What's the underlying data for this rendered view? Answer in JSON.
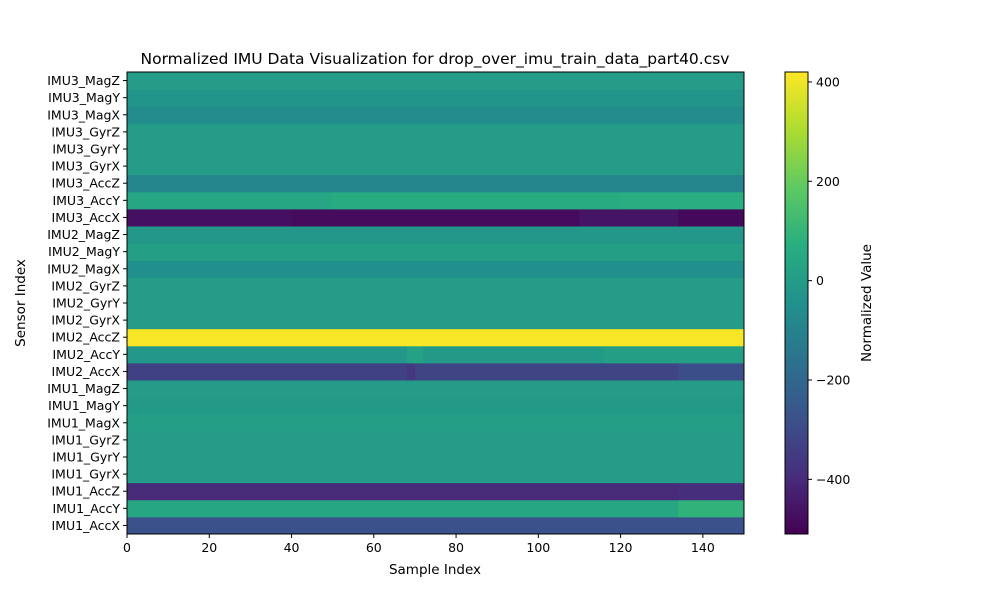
{
  "chart_data": {
    "type": "heatmap",
    "title": "Normalized IMU Data Visualization for drop_over_imu_train_data_part40.csv",
    "xlabel": "Sample Index",
    "ylabel": "Sensor Index",
    "colorbar_label": "Normalized Value",
    "colormap": "viridis",
    "xlim": [
      0,
      150
    ],
    "x_ticks": [
      0,
      20,
      40,
      60,
      80,
      100,
      120,
      140
    ],
    "colorbar_range": [
      -510,
      420
    ],
    "colorbar_ticks": [
      400,
      200,
      0,
      -200,
      -400
    ],
    "colorbar_tick_labels": [
      "400",
      "200",
      "0",
      "−200",
      "−400"
    ],
    "sensors": [
      "IMU1_AccX",
      "IMU1_AccY",
      "IMU1_AccZ",
      "IMU1_GyrX",
      "IMU1_GyrY",
      "IMU1_GyrZ",
      "IMU1_MagX",
      "IMU1_MagY",
      "IMU1_MagZ",
      "IMU2_AccX",
      "IMU2_AccY",
      "IMU2_AccZ",
      "IMU2_GyrX",
      "IMU2_GyrY",
      "IMU2_GyrZ",
      "IMU2_MagX",
      "IMU2_MagY",
      "IMU2_MagZ",
      "IMU3_AccX",
      "IMU3_AccY",
      "IMU3_AccZ",
      "IMU3_GyrX",
      "IMU3_GyrY",
      "IMU3_GyrZ",
      "IMU3_MagX",
      "IMU3_MagY",
      "IMU3_MagZ"
    ],
    "segments": [
      [
        [
          0,
          150,
          -280
        ]
      ],
      [
        [
          0,
          134,
          40
        ],
        [
          134,
          150,
          90
        ]
      ],
      [
        [
          0,
          134,
          -400
        ],
        [
          134,
          150,
          -390
        ]
      ],
      [
        [
          0,
          150,
          0
        ]
      ],
      [
        [
          0,
          150,
          0
        ]
      ],
      [
        [
          0,
          150,
          0
        ]
      ],
      [
        [
          0,
          150,
          10
        ]
      ],
      [
        [
          0,
          150,
          -10
        ]
      ],
      [
        [
          0,
          150,
          0
        ]
      ],
      [
        [
          0,
          68,
          -330
        ],
        [
          68,
          70,
          -360
        ],
        [
          70,
          134,
          -320
        ],
        [
          134,
          150,
          -290
        ]
      ],
      [
        [
          0,
          68,
          -20
        ],
        [
          68,
          72,
          20
        ],
        [
          72,
          116,
          -10
        ],
        [
          116,
          150,
          10
        ]
      ],
      [
        [
          0,
          150,
          410
        ]
      ],
      [
        [
          0,
          150,
          0
        ]
      ],
      [
        [
          0,
          150,
          0
        ]
      ],
      [
        [
          0,
          150,
          0
        ]
      ],
      [
        [
          0,
          150,
          -50
        ]
      ],
      [
        [
          0,
          150,
          10
        ]
      ],
      [
        [
          0,
          150,
          -20
        ]
      ],
      [
        [
          0,
          40,
          -470
        ],
        [
          40,
          110,
          -480
        ],
        [
          110,
          134,
          -460
        ],
        [
          134,
          150,
          -490
        ]
      ],
      [
        [
          0,
          50,
          40
        ],
        [
          50,
          120,
          60
        ],
        [
          120,
          150,
          70
        ]
      ],
      [
        [
          0,
          150,
          -90
        ]
      ],
      [
        [
          0,
          150,
          0
        ]
      ],
      [
        [
          0,
          150,
          0
        ]
      ],
      [
        [
          0,
          150,
          0
        ]
      ],
      [
        [
          0,
          150,
          -60
        ]
      ],
      [
        [
          0,
          150,
          -30
        ]
      ],
      [
        [
          0,
          150,
          0
        ]
      ]
    ]
  }
}
